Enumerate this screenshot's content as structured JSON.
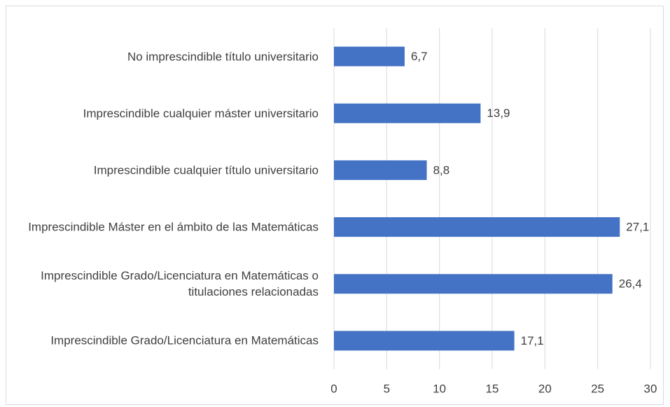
{
  "chart_data": {
    "type": "bar",
    "orientation": "horizontal",
    "categories": [
      "No imprescindible título universitario",
      "Imprescindible cualquier máster universitario",
      "Imprescindible cualquier título universitario",
      "Imprescindible Máster en el ámbito de las Matemáticas",
      "Imprescindible Grado/Licenciatura en Matemáticas o titulaciones relacionadas",
      "Imprescindible Grado/Licenciatura en Matemáticas"
    ],
    "values": [
      6.7,
      13.9,
      8.8,
      27.1,
      26.4,
      17.1
    ],
    "value_labels": [
      "6,7",
      "13,9",
      "8,8",
      "27,1",
      "26,4",
      "17,1"
    ],
    "color": "#4472c4",
    "xlim": [
      0,
      30
    ],
    "xticks": [
      0,
      5,
      10,
      15,
      20,
      25,
      30
    ],
    "grid": true
  }
}
